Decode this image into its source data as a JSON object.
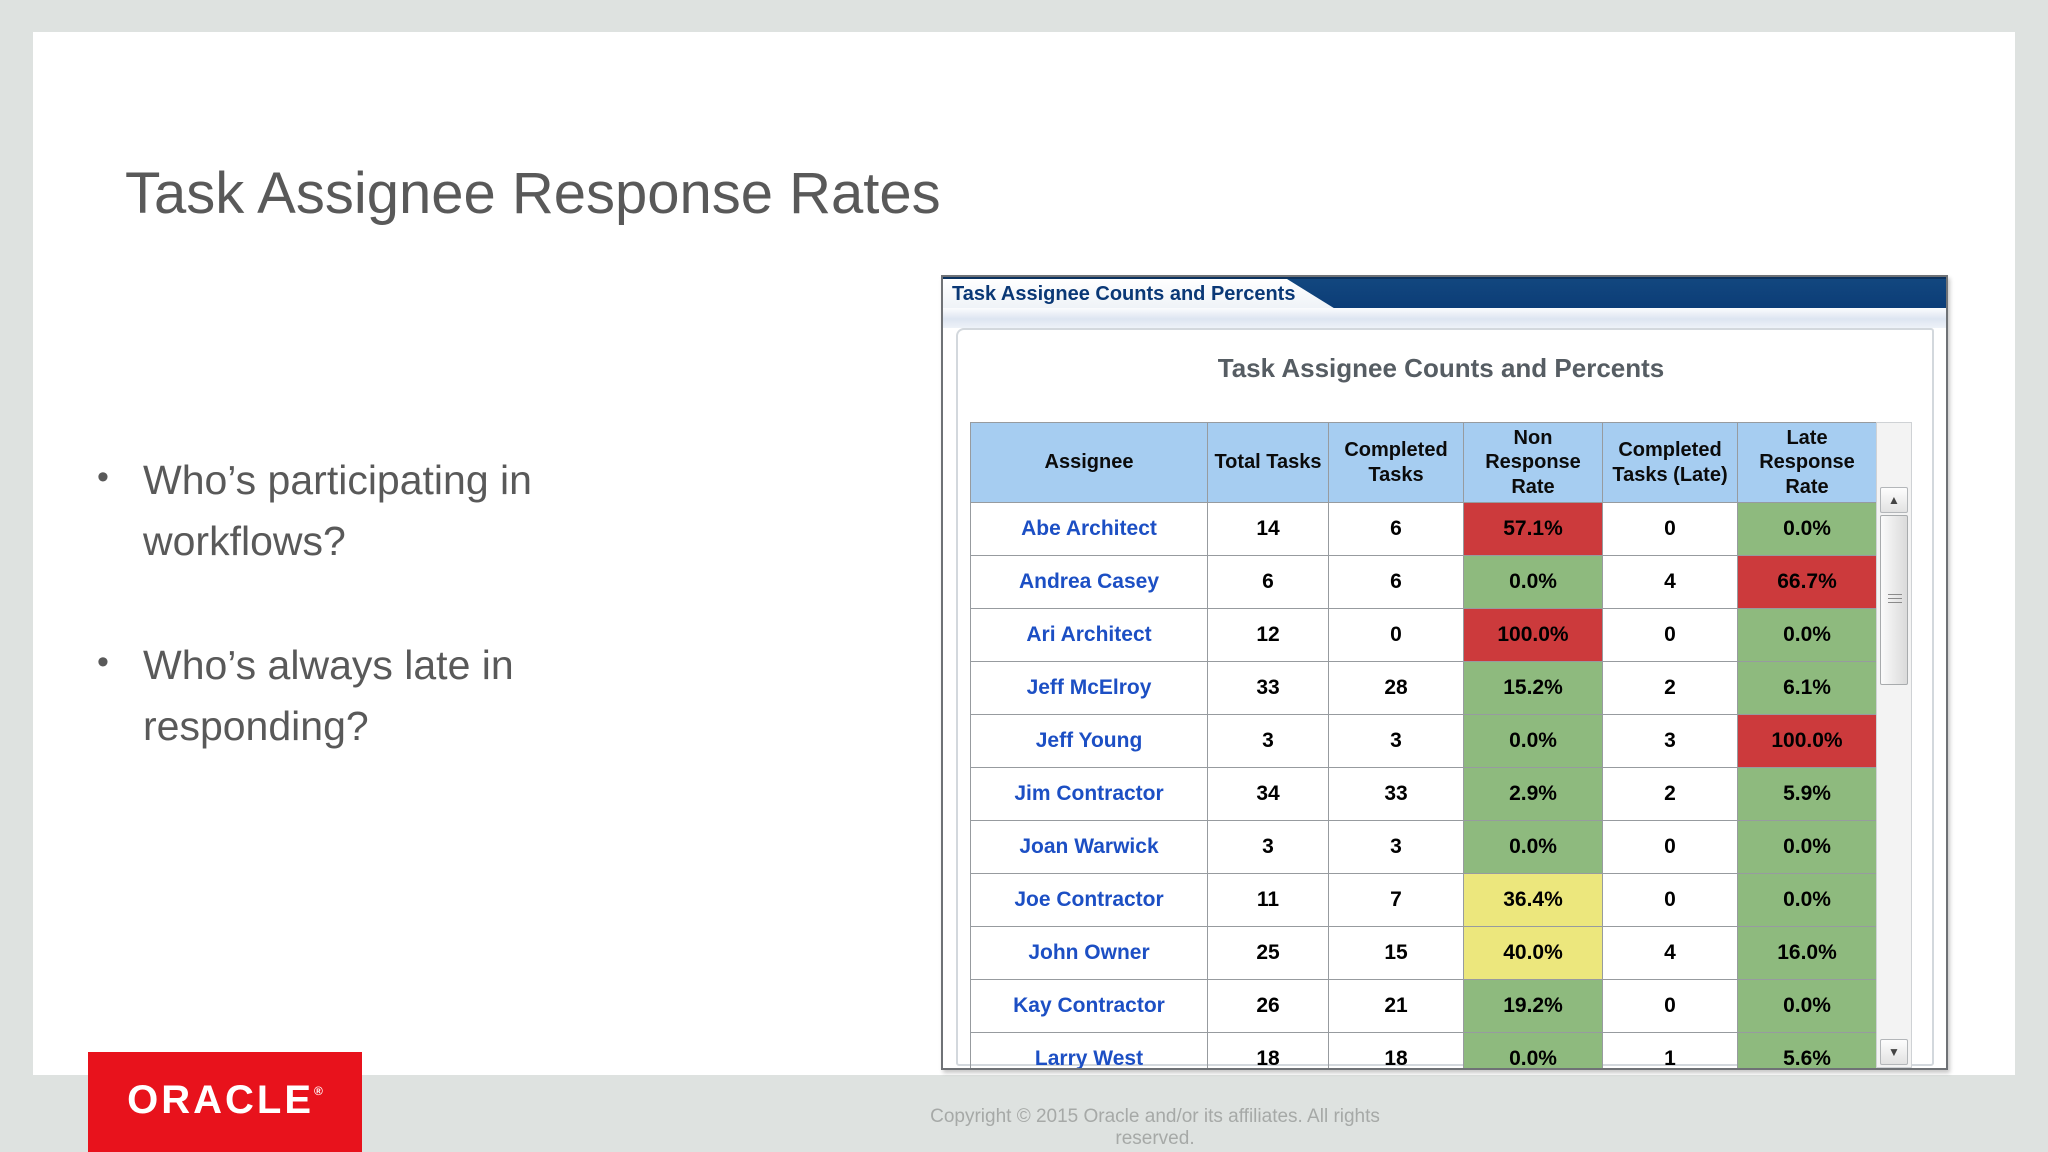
{
  "slide": {
    "title": "Task Assignee Response Rates",
    "bullets": [
      "Who’s participating in workflows?",
      "Who’s always late in responding?"
    ],
    "footer": {
      "logo_text": "ORACLE",
      "logo_registered": "®",
      "copyright": "Copyright © 2015 Oracle and/or its affiliates. All rights reserved."
    }
  },
  "window": {
    "tab_title": "Task Assignee Counts and Percents",
    "panel_title": "Task Assignee Counts and Percents",
    "scrollbar": {
      "up_icon": "▲",
      "down_icon": "▼"
    }
  },
  "colors": {
    "navy_header": "#0c3d77",
    "table_header_blue": "#a6cdf1",
    "status_red": "#cc3a3c",
    "status_green": "#8eba7e",
    "status_yellow": "#ece77d",
    "assignee_link_blue": "#1c4fc4",
    "oracle_red": "#e8121c"
  },
  "chart_data": {
    "type": "table",
    "title": "Task Assignee Counts and Percents",
    "columns": [
      "Assignee",
      "Total Tasks",
      "Completed Tasks",
      "Non Response Rate",
      "Completed Tasks (Late)",
      "Late Response Rate"
    ],
    "rows": [
      {
        "assignee": "Abe Architect",
        "total": 14,
        "completed": 6,
        "non_response_rate": "57.1%",
        "nrr_color": "red",
        "completed_late": 0,
        "late_response_rate": "0.0%",
        "lrr_color": "green"
      },
      {
        "assignee": "Andrea Casey",
        "total": 6,
        "completed": 6,
        "non_response_rate": "0.0%",
        "nrr_color": "green",
        "completed_late": 4,
        "late_response_rate": "66.7%",
        "lrr_color": "red"
      },
      {
        "assignee": "Ari Architect",
        "total": 12,
        "completed": 0,
        "non_response_rate": "100.0%",
        "nrr_color": "red",
        "completed_late": 0,
        "late_response_rate": "0.0%",
        "lrr_color": "green"
      },
      {
        "assignee": "Jeff McElroy",
        "total": 33,
        "completed": 28,
        "non_response_rate": "15.2%",
        "nrr_color": "green",
        "completed_late": 2,
        "late_response_rate": "6.1%",
        "lrr_color": "green"
      },
      {
        "assignee": "Jeff Young",
        "total": 3,
        "completed": 3,
        "non_response_rate": "0.0%",
        "nrr_color": "green",
        "completed_late": 3,
        "late_response_rate": "100.0%",
        "lrr_color": "red"
      },
      {
        "assignee": "Jim Contractor",
        "total": 34,
        "completed": 33,
        "non_response_rate": "2.9%",
        "nrr_color": "green",
        "completed_late": 2,
        "late_response_rate": "5.9%",
        "lrr_color": "green"
      },
      {
        "assignee": "Joan Warwick",
        "total": 3,
        "completed": 3,
        "non_response_rate": "0.0%",
        "nrr_color": "green",
        "completed_late": 0,
        "late_response_rate": "0.0%",
        "lrr_color": "green"
      },
      {
        "assignee": "Joe Contractor",
        "total": 11,
        "completed": 7,
        "non_response_rate": "36.4%",
        "nrr_color": "yellow",
        "completed_late": 0,
        "late_response_rate": "0.0%",
        "lrr_color": "green"
      },
      {
        "assignee": "John Owner",
        "total": 25,
        "completed": 15,
        "non_response_rate": "40.0%",
        "nrr_color": "yellow",
        "completed_late": 4,
        "late_response_rate": "16.0%",
        "lrr_color": "green"
      },
      {
        "assignee": "Kay Contractor",
        "total": 26,
        "completed": 21,
        "non_response_rate": "19.2%",
        "nrr_color": "green",
        "completed_late": 0,
        "late_response_rate": "0.0%",
        "lrr_color": "green"
      },
      {
        "assignee": "Larry West",
        "total": 18,
        "completed": 18,
        "non_response_rate": "0.0%",
        "nrr_color": "green",
        "completed_late": 1,
        "late_response_rate": "5.6%",
        "lrr_color": "green"
      }
    ]
  }
}
